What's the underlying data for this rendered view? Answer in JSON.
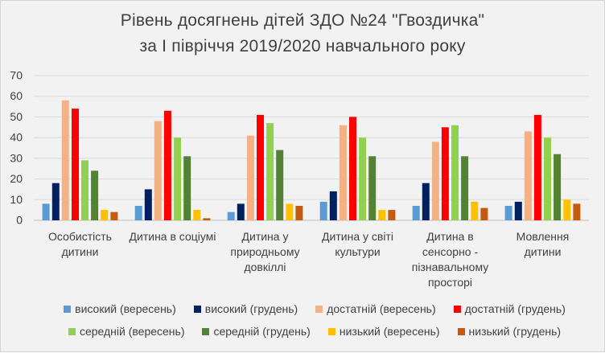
{
  "chart_data": {
    "type": "bar",
    "title": "Рівень досягнень дітей ЗДО №24 \"Гвоздичка\"",
    "subtitle": "за І півріччя 2019/2020  навчального року",
    "xlabel": "",
    "ylabel": "",
    "ylim": [
      0,
      70
    ],
    "yticks": [
      0,
      10,
      20,
      30,
      40,
      50,
      60,
      70
    ],
    "grid": true,
    "legend_position": "bottom",
    "categories": [
      [
        "Особистість",
        "дитини"
      ],
      [
        "Дитина в соціумі"
      ],
      [
        "Дитина у",
        "природньому",
        "довкіллі"
      ],
      [
        "Дитина у світі",
        "культури"
      ],
      [
        "Дитина в",
        "сенсорно -",
        "пізнавальному",
        "просторі"
      ],
      [
        "Мовлення",
        "дитини"
      ]
    ],
    "series": [
      {
        "name": "високий (вересень)",
        "color": "#5B9BD5",
        "values": [
          8,
          7,
          4,
          9,
          7,
          7
        ]
      },
      {
        "name": "високий (грудень)",
        "color": "#002060",
        "values": [
          18,
          15,
          8,
          14,
          18,
          9
        ]
      },
      {
        "name": "достатній (вересень)",
        "color": "#F4B183",
        "values": [
          58,
          48,
          41,
          46,
          38,
          43
        ]
      },
      {
        "name": "достатній (грудень)",
        "color": "#FF0000",
        "values": [
          54,
          53,
          51,
          50,
          45,
          51
        ]
      },
      {
        "name": "середній (вересень)",
        "color": "#92D050",
        "values": [
          29,
          40,
          47,
          40,
          46,
          40
        ]
      },
      {
        "name": "середній (грудень)",
        "color": "#548235",
        "values": [
          24,
          31,
          34,
          31,
          31,
          32
        ]
      },
      {
        "name": "низький (вересень)",
        "color": "#FFC000",
        "values": [
          5,
          5,
          8,
          5,
          9,
          10
        ]
      },
      {
        "name": "низький (грудень)",
        "color": "#C55A11",
        "values": [
          4,
          1,
          7,
          5,
          6,
          8
        ]
      }
    ]
  }
}
